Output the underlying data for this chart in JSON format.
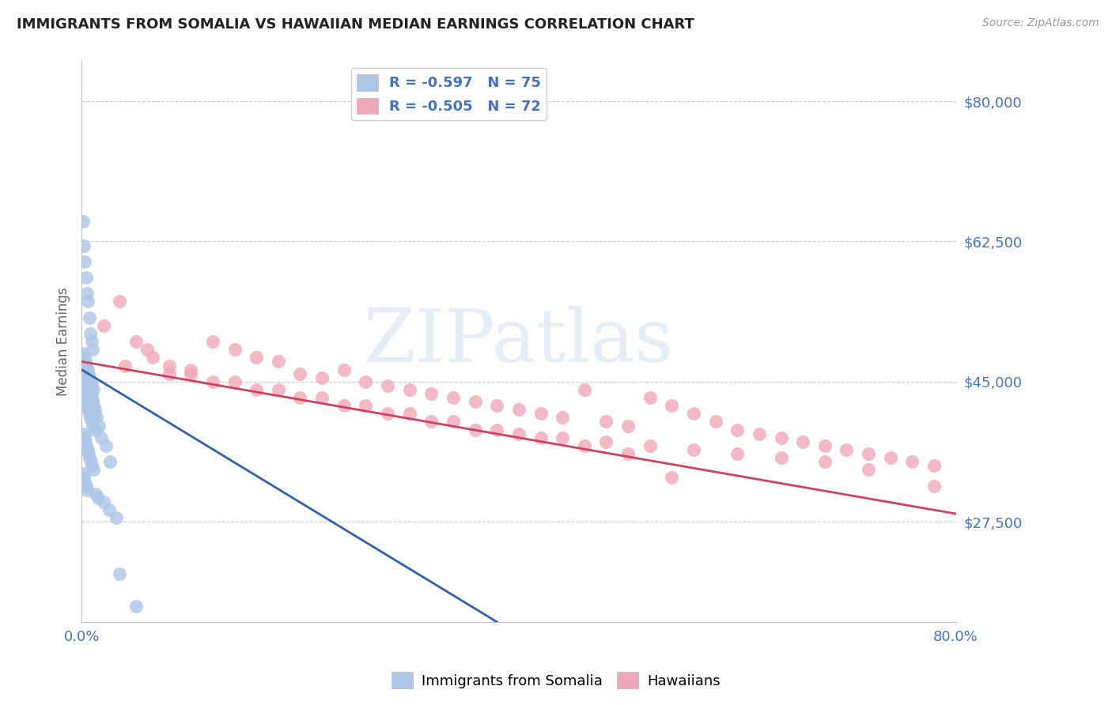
{
  "title": "IMMIGRANTS FROM SOMALIA VS HAWAIIAN MEDIAN EARNINGS CORRELATION CHART",
  "source": "Source: ZipAtlas.com",
  "ylabel": "Median Earnings",
  "yticks": [
    27500,
    45000,
    62500,
    80000
  ],
  "ytick_labels": [
    "$27,500",
    "$45,000",
    "$62,500",
    "$80,000"
  ],
  "xlim": [
    0.0,
    80.0
  ],
  "ylim": [
    15000,
    85000
  ],
  "legend_entries": [
    {
      "label": "R = -0.597   N = 75",
      "color": "#adc6e8"
    },
    {
      "label": "R = -0.505   N = 72",
      "color": "#f0a8b8"
    }
  ],
  "series1_label": "Immigrants from Somalia",
  "series2_label": "Hawaiians",
  "series1_color": "#adc6e8",
  "series2_color": "#f0a8b8",
  "series1_line_color": "#3060b0",
  "series2_line_color": "#d04060",
  "watermark": "ZIPatlas",
  "title_fontsize": 13,
  "axis_label_color": "#4472c4",
  "ytick_color": "#4472c4",
  "xtick_color": "#4472c4",
  "grid_color": "#cccccc",
  "background_color": "#ffffff",
  "scatter1_x": [
    0.1,
    0.2,
    0.3,
    0.4,
    0.5,
    0.6,
    0.7,
    0.8,
    0.9,
    1.0,
    0.15,
    0.25,
    0.35,
    0.45,
    0.55,
    0.65,
    0.75,
    0.85,
    0.95,
    1.1,
    0.2,
    0.3,
    0.4,
    0.5,
    0.6,
    0.7,
    0.8,
    0.9,
    1.0,
    1.2,
    0.15,
    0.25,
    0.35,
    0.45,
    0.55,
    0.65,
    0.75,
    0.85,
    0.95,
    1.05,
    0.1,
    0.2,
    0.3,
    0.4,
    0.5,
    1.3,
    1.5,
    2.0,
    2.5,
    3.2,
    0.5,
    0.6,
    0.7,
    0.8,
    0.9,
    1.0,
    1.1,
    1.2,
    1.4,
    1.6,
    0.3,
    0.4,
    0.5,
    0.6,
    0.7,
    0.8,
    0.9,
    1.0,
    1.1,
    1.2,
    1.8,
    2.2,
    2.6,
    3.5,
    5.0
  ],
  "scatter1_y": [
    65000,
    62000,
    60000,
    58000,
    56000,
    55000,
    53000,
    51000,
    50000,
    49000,
    48500,
    48000,
    47500,
    47000,
    46500,
    46000,
    45500,
    45000,
    44500,
    44000,
    43500,
    43000,
    42500,
    42000,
    41500,
    41000,
    40500,
    40000,
    39500,
    39000,
    38500,
    38000,
    37500,
    37000,
    36500,
    36000,
    35500,
    35000,
    34500,
    34000,
    33500,
    33000,
    32500,
    32000,
    31500,
    31000,
    30500,
    30000,
    29000,
    28000,
    45000,
    44500,
    44000,
    43500,
    43000,
    42500,
    42000,
    41500,
    40500,
    39500,
    46000,
    45500,
    45000,
    44500,
    44000,
    43500,
    43000,
    42500,
    42000,
    41000,
    38000,
    37000,
    35000,
    21000,
    17000
  ],
  "scatter2_x": [
    2.0,
    3.5,
    5.0,
    6.5,
    8.0,
    10.0,
    12.0,
    14.0,
    16.0,
    18.0,
    20.0,
    22.0,
    24.0,
    26.0,
    28.0,
    30.0,
    32.0,
    34.0,
    36.0,
    38.0,
    40.0,
    42.0,
    44.0,
    46.0,
    48.0,
    50.0,
    52.0,
    54.0,
    56.0,
    58.0,
    60.0,
    62.0,
    64.0,
    66.0,
    68.0,
    70.0,
    72.0,
    74.0,
    76.0,
    78.0,
    4.0,
    8.0,
    12.0,
    16.0,
    20.0,
    24.0,
    28.0,
    32.0,
    36.0,
    40.0,
    44.0,
    48.0,
    52.0,
    56.0,
    60.0,
    64.0,
    68.0,
    72.0,
    6.0,
    10.0,
    14.0,
    18.0,
    22.0,
    26.0,
    30.0,
    34.0,
    38.0,
    42.0,
    46.0,
    50.0,
    54.0,
    78.0
  ],
  "scatter2_y": [
    52000,
    55000,
    50000,
    48000,
    47000,
    46500,
    50000,
    49000,
    48000,
    47500,
    46000,
    45500,
    46500,
    45000,
    44500,
    44000,
    43500,
    43000,
    42500,
    42000,
    41500,
    41000,
    40500,
    44000,
    40000,
    39500,
    43000,
    42000,
    41000,
    40000,
    39000,
    38500,
    38000,
    37500,
    37000,
    36500,
    36000,
    35500,
    35000,
    34500,
    47000,
    46000,
    45000,
    44000,
    43000,
    42000,
    41000,
    40000,
    39000,
    38500,
    38000,
    37500,
    37000,
    36500,
    36000,
    35500,
    35000,
    34000,
    49000,
    46000,
    45000,
    44000,
    43000,
    42000,
    41000,
    40000,
    39000,
    38000,
    37000,
    36000,
    33000,
    32000
  ],
  "trend1_x": [
    0.0,
    38.0
  ],
  "trend1_y": [
    46500,
    15000
  ],
  "trend2_x": [
    0.0,
    80.0
  ],
  "trend2_y": [
    47500,
    28500
  ]
}
